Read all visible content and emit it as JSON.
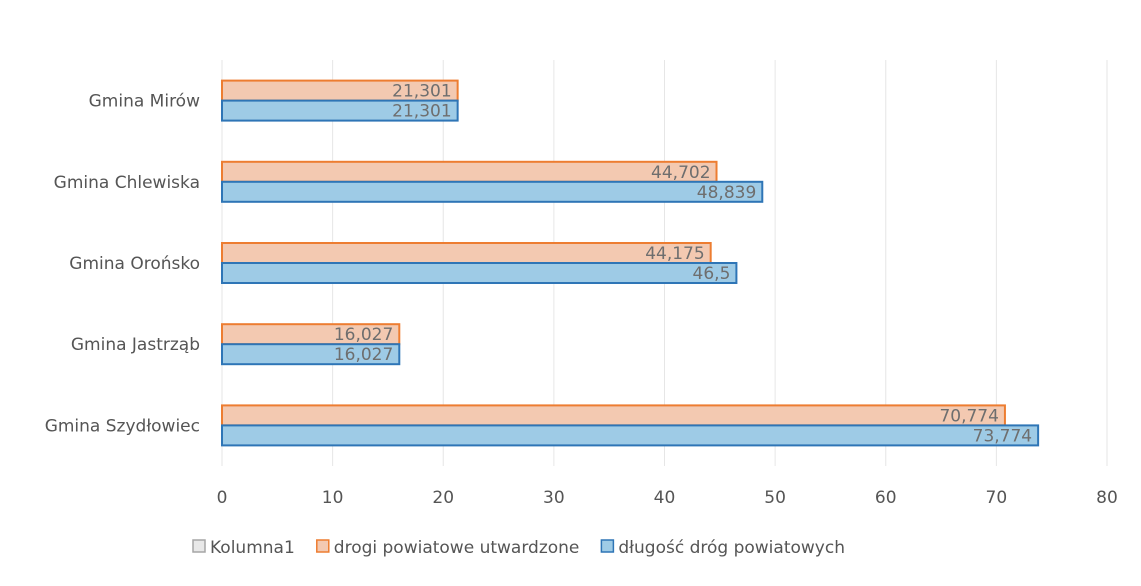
{
  "chart_data": {
    "type": "bar",
    "orientation": "horizontal",
    "categories": [
      "Gmina Mirów",
      "Gmina Chlewiska",
      "Gmina Orońsko",
      "Gmina Jastrząb",
      "Gmina Szydłowiec"
    ],
    "series": [
      {
        "name": "drogi powiatowe utwardzone",
        "values": [
          21.301,
          44.702,
          44.175,
          16.027,
          70.774
        ],
        "labels": [
          "21,301",
          "44,702",
          "44,175",
          "16,027",
          "70,774"
        ],
        "fill": "#f3c9b1",
        "stroke": "#ed7d31"
      },
      {
        "name": "długość dróg powiatowych",
        "values": [
          21.301,
          48.839,
          46.5,
          16.027,
          73.774
        ],
        "labels": [
          "21,301",
          "48,839",
          "46,5",
          "16,027",
          "73,774"
        ],
        "fill": "#9ecbe6",
        "stroke": "#2e75b6"
      }
    ],
    "xlim": [
      0,
      80
    ],
    "xticks": [
      "0",
      "10",
      "20",
      "30",
      "40",
      "50",
      "60",
      "70",
      "80"
    ],
    "grid": true,
    "legend": {
      "placement": "bottom",
      "entries": [
        {
          "name": "Kolumna1",
          "fill": "#e8e8e8",
          "stroke": "#a6a6a6"
        },
        {
          "name": "drogi powiatowe utwardzone",
          "fill": "#f3c9b1",
          "stroke": "#ed7d31"
        },
        {
          "name": "długość dróg powiatowych",
          "fill": "#9ecbe6",
          "stroke": "#2e75b6"
        }
      ]
    }
  }
}
